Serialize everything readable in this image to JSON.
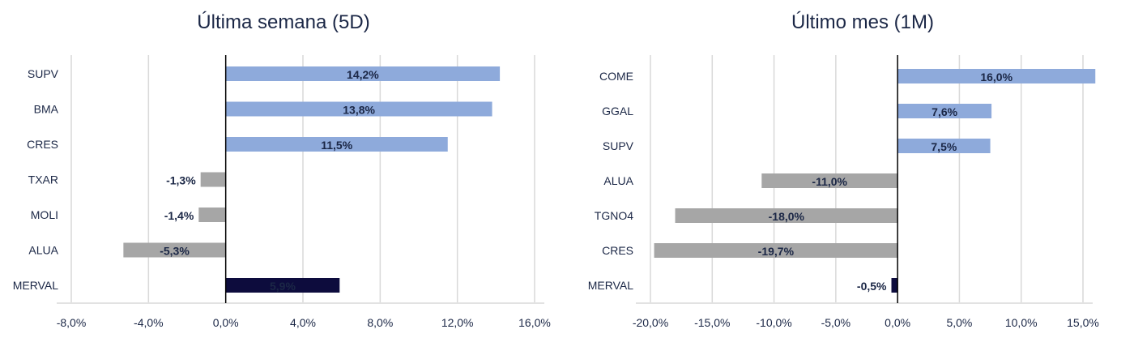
{
  "chart_data": [
    {
      "type": "bar",
      "orientation": "horizontal",
      "title": "Última semana (5D)",
      "categories": [
        "SUPV",
        "BMA",
        "CRES",
        "TXAR",
        "MOLI",
        "ALUA",
        "MERVAL"
      ],
      "values": [
        14.2,
        13.8,
        11.5,
        -1.3,
        -1.4,
        -5.3,
        5.9
      ],
      "data_labels": [
        "14,2%",
        "13,8%",
        "11,5%",
        "-1,3%",
        "-1,4%",
        "-5,3%",
        "5,9%"
      ],
      "bar_colors": [
        "#8eaadb",
        "#8eaadb",
        "#8eaadb",
        "#a6a6a6",
        "#a6a6a6",
        "#a6a6a6",
        "#0d0c3d"
      ],
      "xlim": [
        -8,
        16
      ],
      "ticks": [
        -8,
        -4,
        0,
        4,
        8,
        12,
        16
      ],
      "tick_labels": [
        "-8,0%",
        "-4,0%",
        "0,0%",
        "4,0%",
        "8,0%",
        "12,0%",
        "16,0%"
      ],
      "grid": true
    },
    {
      "type": "bar",
      "orientation": "horizontal",
      "title": "Último mes (1M)",
      "categories": [
        "COME",
        "GGAL",
        "SUPV",
        "ALUA",
        "TGNO4",
        "CRES",
        "MERVAL"
      ],
      "values": [
        16.0,
        7.6,
        7.5,
        -11.0,
        -18.0,
        -19.7,
        -0.5
      ],
      "data_labels": [
        "16,0%",
        "7,6%",
        "7,5%",
        "-11,0%",
        "-18,0%",
        "-19,7%",
        "-0,5%"
      ],
      "bar_colors": [
        "#8eaadb",
        "#8eaadb",
        "#8eaadb",
        "#a6a6a6",
        "#a6a6a6",
        "#a6a6a6",
        "#0d0c3d"
      ],
      "xlim": [
        -20,
        15
      ],
      "ticks": [
        -20,
        -15,
        -10,
        -5,
        0,
        5,
        10,
        15
      ],
      "tick_labels": [
        "-20,0%",
        "-15,0%",
        "-10,0%",
        "-5,0%",
        "0,0%",
        "5,0%",
        "10,0%",
        "15,0%"
      ],
      "grid": true
    }
  ]
}
